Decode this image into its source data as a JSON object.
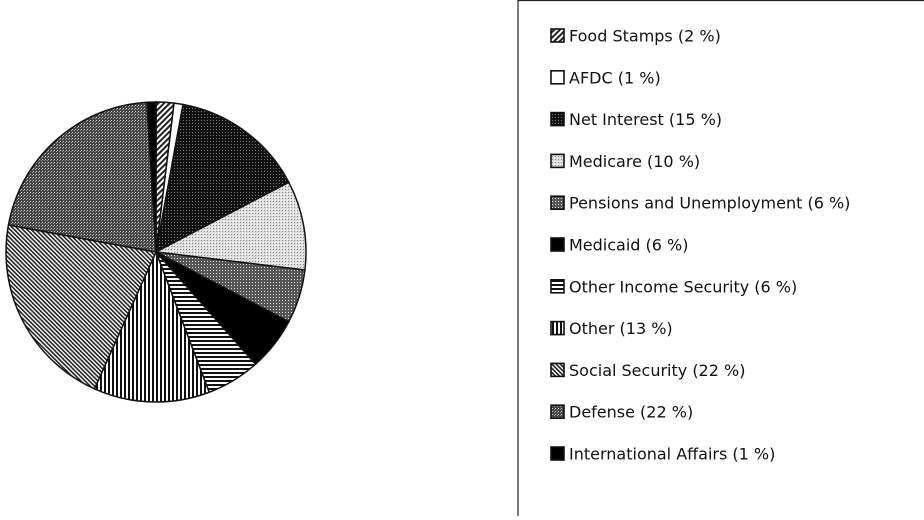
{
  "chart_data": {
    "type": "pie",
    "categories": [
      "Food Stamps (2 %)",
      "AFDC (1 %)",
      "Net Interest (15 %)",
      "Medicare (10 %)",
      "Pensions and Unemployment (6 %)",
      "Medicaid (6 %)",
      "Other Income Security (6 %)",
      "Other (13 %)",
      "Social Security (22 %)",
      "Defense (22 %)",
      "International Affairs (1 %)"
    ],
    "values": [
      2,
      1,
      15,
      10,
      6,
      6,
      6,
      13,
      22,
      22,
      1
    ]
  }
}
